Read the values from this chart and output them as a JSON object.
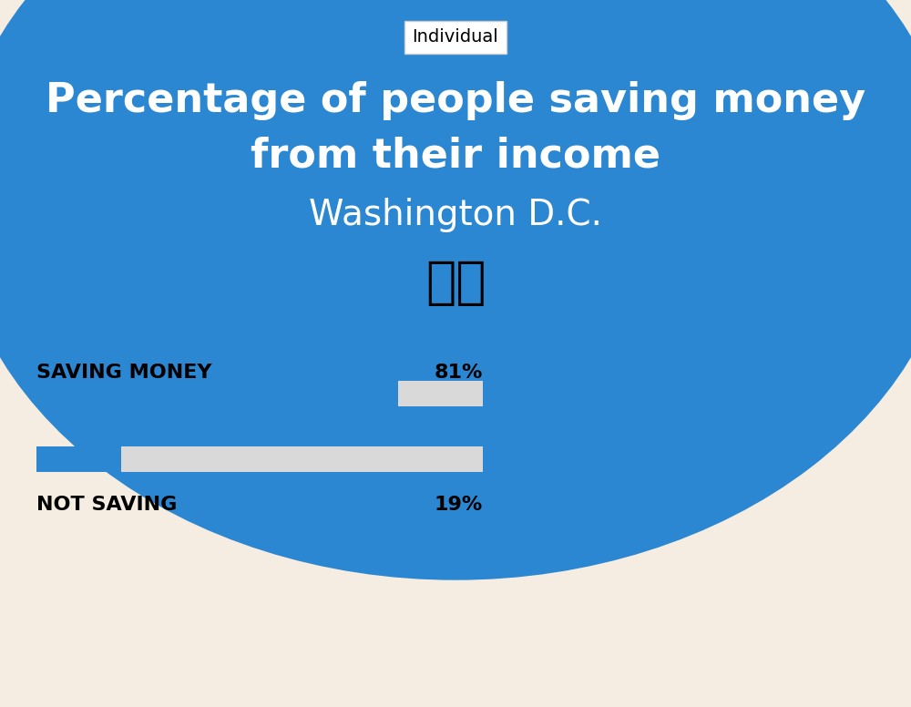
{
  "title_line1": "Percentage of people saving money",
  "title_line2": "from their income",
  "subtitle": "Washington D.C.",
  "tab_label": "Individual",
  "bg_top_color": "#2b87d1",
  "bg_bottom_color": "#f5ece2",
  "bar_color": "#2b87d1",
  "bar_bg_color": "#d9d9d9",
  "categories": [
    "SAVING MONEY",
    "NOT SAVING"
  ],
  "values": [
    81,
    19
  ],
  "percentages": [
    "81%",
    "19%"
  ],
  "title_fontsize": 32,
  "subtitle_fontsize": 28,
  "label_fontsize": 16,
  "pct_fontsize": 16,
  "tab_fontsize": 14
}
